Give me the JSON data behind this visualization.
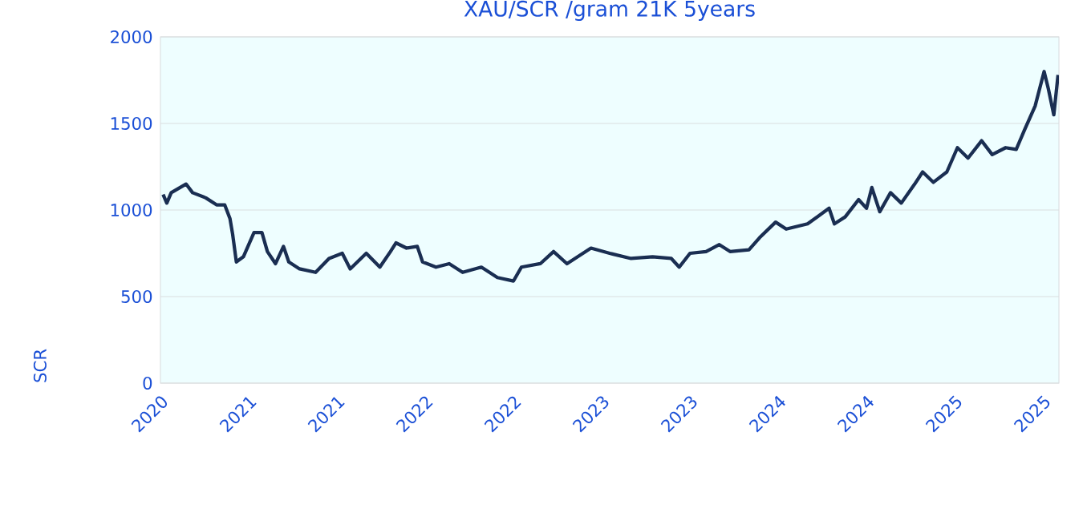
{
  "chart_data": {
    "type": "line",
    "title": "XAU/SCR /gram 21K 5years",
    "ylabel": "SCR",
    "xlim": [
      2020.0,
      2025.09
    ],
    "ylim": [
      0,
      2000
    ],
    "xticks": [
      {
        "value": 2020.0,
        "label": "2020"
      },
      {
        "value": 2020.5,
        "label": "2021"
      },
      {
        "value": 2021.0,
        "label": "2021"
      },
      {
        "value": 2021.5,
        "label": "2022"
      },
      {
        "value": 2022.0,
        "label": "2022"
      },
      {
        "value": 2022.5,
        "label": "2023"
      },
      {
        "value": 2023.0,
        "label": "2023"
      },
      {
        "value": 2023.5,
        "label": "2024"
      },
      {
        "value": 2024.0,
        "label": "2024"
      },
      {
        "value": 2024.5,
        "label": "2025"
      },
      {
        "value": 2025.0,
        "label": "2025"
      }
    ],
    "yticks": [
      0,
      500,
      1000,
      1500,
      2000
    ],
    "grid": "y",
    "marker": "none",
    "line_style": "solid",
    "series": [
      {
        "color": "#1a2e52",
        "x": [
          2020.015,
          2020.036,
          2020.061,
          2020.145,
          2020.182,
          2020.257,
          2020.318,
          2020.364,
          2020.394,
          2020.409,
          2020.43,
          2020.47,
          2020.53,
          2020.575,
          2020.606,
          2020.652,
          2020.697,
          2020.727,
          2020.788,
          2020.879,
          2020.955,
          2021.03,
          2021.075,
          2021.166,
          2021.243,
          2021.303,
          2021.334,
          2021.394,
          2021.455,
          2021.485,
          2021.561,
          2021.636,
          2021.712,
          2021.818,
          2021.909,
          2022.0,
          2022.045,
          2022.152,
          2022.227,
          2022.303,
          2022.364,
          2022.439,
          2022.545,
          2022.666,
          2022.788,
          2022.894,
          2022.939,
          2023.0,
          2023.091,
          2023.166,
          2023.227,
          2023.334,
          2023.394,
          2023.485,
          2023.545,
          2023.666,
          2023.788,
          2023.818,
          2023.879,
          2023.955,
          2024.0,
          2024.03,
          2024.075,
          2024.136,
          2024.197,
          2024.273,
          2024.318,
          2024.379,
          2024.455,
          2024.515,
          2024.575,
          2024.652,
          2024.712,
          2024.788,
          2024.848,
          2024.894,
          2024.955,
          2025.006,
          2025.03,
          2025.061,
          2025.085
        ],
        "values": [
          1090,
          1040,
          1100,
          1150,
          1100,
          1070,
          1030,
          1030,
          950,
          860,
          700,
          730,
          870,
          870,
          760,
          690,
          790,
          700,
          660,
          640,
          720,
          750,
          660,
          750,
          670,
          760,
          810,
          780,
          790,
          700,
          670,
          690,
          640,
          670,
          610,
          590,
          670,
          690,
          760,
          690,
          730,
          780,
          750,
          720,
          730,
          720,
          670,
          750,
          760,
          800,
          760,
          770,
          840,
          930,
          890,
          920,
          1010,
          920,
          960,
          1060,
          1010,
          1130,
          990,
          1100,
          1040,
          1150,
          1220,
          1160,
          1220,
          1360,
          1300,
          1400,
          1320,
          1360,
          1350,
          1460,
          1600,
          1800,
          1700,
          1550,
          1780
        ]
      }
    ]
  }
}
